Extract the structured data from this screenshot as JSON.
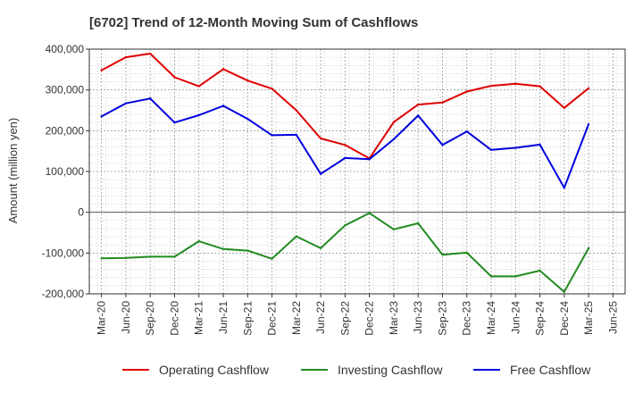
{
  "chart_data": {
    "type": "line",
    "title": "[6702]  Trend of 12-Month Moving Sum of Cashflows",
    "xlabel": "",
    "ylabel": "Amount (million yen)",
    "ylim": [
      -200000,
      400000
    ],
    "yticks": [
      400000,
      300000,
      200000,
      100000,
      0,
      -100000,
      -200000
    ],
    "ytick_labels": [
      "400,000",
      "300,000",
      "200,000",
      "100,000",
      "0",
      "-100,000",
      "-200,000"
    ],
    "categories": [
      "Mar-20",
      "Jun-20",
      "Sep-20",
      "Dec-20",
      "Mar-21",
      "Jun-21",
      "Sep-21",
      "Dec-21",
      "Mar-22",
      "Jun-22",
      "Sep-22",
      "Dec-22",
      "Mar-23",
      "Jun-23",
      "Sep-23",
      "Dec-23",
      "Mar-24",
      "Jun-24",
      "Sep-24",
      "Dec-24",
      "Mar-25",
      "Jun-25"
    ],
    "grid": true,
    "legend_position": "bottom",
    "series": [
      {
        "name": "Operating Cashflow",
        "color": "#e00000",
        "values": [
          348000,
          380000,
          389000,
          331000,
          309000,
          351000,
          323000,
          303000,
          250000,
          181000,
          165000,
          132000,
          221000,
          264000,
          269000,
          296000,
          310000,
          315000,
          309000,
          256000,
          304000,
          null
        ]
      },
      {
        "name": "Investing Cashflow",
        "color": "#228b22",
        "values": [
          -113000,
          -112000,
          -109000,
          -109000,
          -71000,
          -90000,
          -94000,
          -114000,
          -59000,
          -88000,
          -32000,
          -2000,
          -42000,
          -27000,
          -104000,
          -99000,
          -157000,
          -157000,
          -143000,
          -195000,
          -88000,
          null
        ]
      },
      {
        "name": "Free Cashflow",
        "color": "#0000dd",
        "values": [
          235000,
          267000,
          279000,
          220000,
          238000,
          261000,
          229000,
          189000,
          190000,
          94000,
          133000,
          130000,
          179000,
          237000,
          165000,
          198000,
          153000,
          158000,
          166000,
          60000,
          216000,
          null
        ]
      }
    ]
  }
}
